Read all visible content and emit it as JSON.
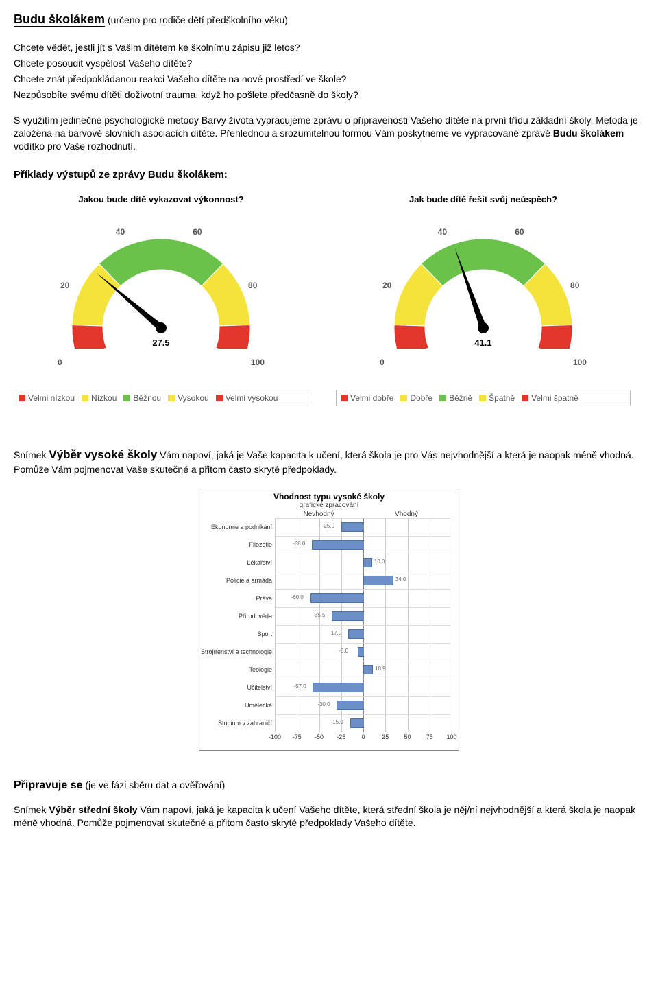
{
  "header": {
    "title": "Budu školákem",
    "subtitle": "(určeno pro rodiče dětí předškolního věku)"
  },
  "intro": {
    "q1": "Chcete vědět, jestli jít s Vašim dítětem ke školnímu zápisu již letos?",
    "q2": "Chcete posoudit vyspělost Vašeho dítěte?",
    "q3": "Chcete znát předpokládanou reakci Vašeho dítěte na nové prostředí ve škole?",
    "q4": "Nezpůsobíte svému dítěti doživotní trauma, když ho pošlete předčasně do školy?",
    "p1a": "S využitím jedinečné psychologické metody Barvy života vypracujeme zprávu o připravenosti Vašeho dítěte na první třídu základní školy. Metoda je založena na barvově slovních asociacích dítěte. Přehlednou a srozumitelnou formou Vám ",
    "p1b": "poskytneme ve vypracované zprávě ",
    "p1_bold": "Budu školákem",
    "p1c": " vodítko pro Vaše rozhodnutí.",
    "examples_heading": "Příklady výstupů ze zprávy Budu školákem:"
  },
  "gauges": {
    "type": "gauge",
    "band_boundaries": [
      0,
      10,
      30,
      70,
      90,
      100
    ],
    "band_colors": [
      "#e3362b",
      "#f4e33a",
      "#6ac24a",
      "#f4e33a",
      "#e3362b"
    ],
    "tick_values": [
      0,
      20,
      40,
      60,
      80,
      100
    ],
    "tick_color": "#555555",
    "needle_color": "#000000",
    "left": {
      "title": "Jakou bude dítě vykazovat výkonnost?",
      "value": 27.5,
      "value_text": "27.5",
      "ticks": [
        "0",
        "20",
        "40",
        "60",
        "80",
        "100"
      ],
      "legend": [
        {
          "label": "Velmi nízkou",
          "color": "#e3362b"
        },
        {
          "label": "Nízkou",
          "color": "#f4e33a"
        },
        {
          "label": "Běžnou",
          "color": "#6ac24a"
        },
        {
          "label": "Vysokou",
          "color": "#f4e33a"
        },
        {
          "label": "Velmi vysokou",
          "color": "#e3362b"
        }
      ]
    },
    "right": {
      "title": "Jak bude dítě řešit svůj neúspěch?",
      "value": 41.1,
      "value_text": "41.1",
      "ticks": [
        "0",
        "20",
        "40",
        "60",
        "80",
        "100"
      ],
      "legend": [
        {
          "label": "Velmi dobře",
          "color": "#e3362b"
        },
        {
          "label": "Dobře",
          "color": "#f4e33a"
        },
        {
          "label": "Běžně",
          "color": "#6ac24a"
        },
        {
          "label": "Špatně",
          "color": "#f4e33a"
        },
        {
          "label": "Velmi špatně",
          "color": "#e3362b"
        }
      ]
    }
  },
  "mid": {
    "lead_word": "Snímek ",
    "lead_bold": "Výběr vysoké školy",
    "lead_rest": " Vám napoví, jaká je Vaše kapacita k učení, která škola je pro Vás nejvhodnější a která je naopak méně vhodná. Pomůže Vám pojmenovat Vaše skutečné a přitom často skryté předpoklady."
  },
  "barchart": {
    "type": "diverging-bar",
    "title": "Vhodnost typu vysoké školy",
    "subtitle": "grafické zpracování",
    "neg_header": "Nevhodný",
    "pos_header": "Vhodný",
    "xlim": [
      -100,
      100
    ],
    "xticks": [
      -100,
      -75,
      -50,
      -25,
      0,
      25,
      50,
      75,
      100
    ],
    "bar_color": "#6d8fc8",
    "bar_border": "#4a6fa8",
    "grid_color": "#cccccc",
    "zero_line_color": "#888888",
    "rows": [
      {
        "label": "Ekonomie a podnikání",
        "value": -25.0,
        "text": "-25.0"
      },
      {
        "label": "Filozofie",
        "value": -58.0,
        "text": "-58.0"
      },
      {
        "label": "Lékařství",
        "value": 10.0,
        "text": "10.0"
      },
      {
        "label": "Policie a armáda",
        "value": 34.0,
        "text": "34.0"
      },
      {
        "label": "Práva",
        "value": -60.0,
        "text": "-60.0"
      },
      {
        "label": "Přírodověda",
        "value": -35.5,
        "text": "-35.5"
      },
      {
        "label": "Sport",
        "value": -17.0,
        "text": "-17.0"
      },
      {
        "label": "Strojírenství a technologie",
        "value": -6.0,
        "text": "-6.0"
      },
      {
        "label": "Teologie",
        "value": 10.9,
        "text": "10.9"
      },
      {
        "label": "Učitelství",
        "value": -57.0,
        "text": "-57.0"
      },
      {
        "label": "Umělecké",
        "value": -30.0,
        "text": "-30.0"
      },
      {
        "label": "Studium v zahraničí",
        "value": -15.0,
        "text": "-15.0"
      }
    ]
  },
  "footer": {
    "heading_bold": "Připravuje se",
    "heading_rest": " (je ve fázi sběru dat a ověřování)",
    "p_lead": "Snímek ",
    "p_bold": "Výběr střední školy",
    "p_rest": " Vám napoví, jaká je kapacita k učení Vašeho dítěte, která střední škola je něj/ní nejvhodnější a která škola je naopak méně vhodná. Pomůže pojmenovat skutečné a přitom často skryté předpoklady Vašeho dítěte."
  }
}
